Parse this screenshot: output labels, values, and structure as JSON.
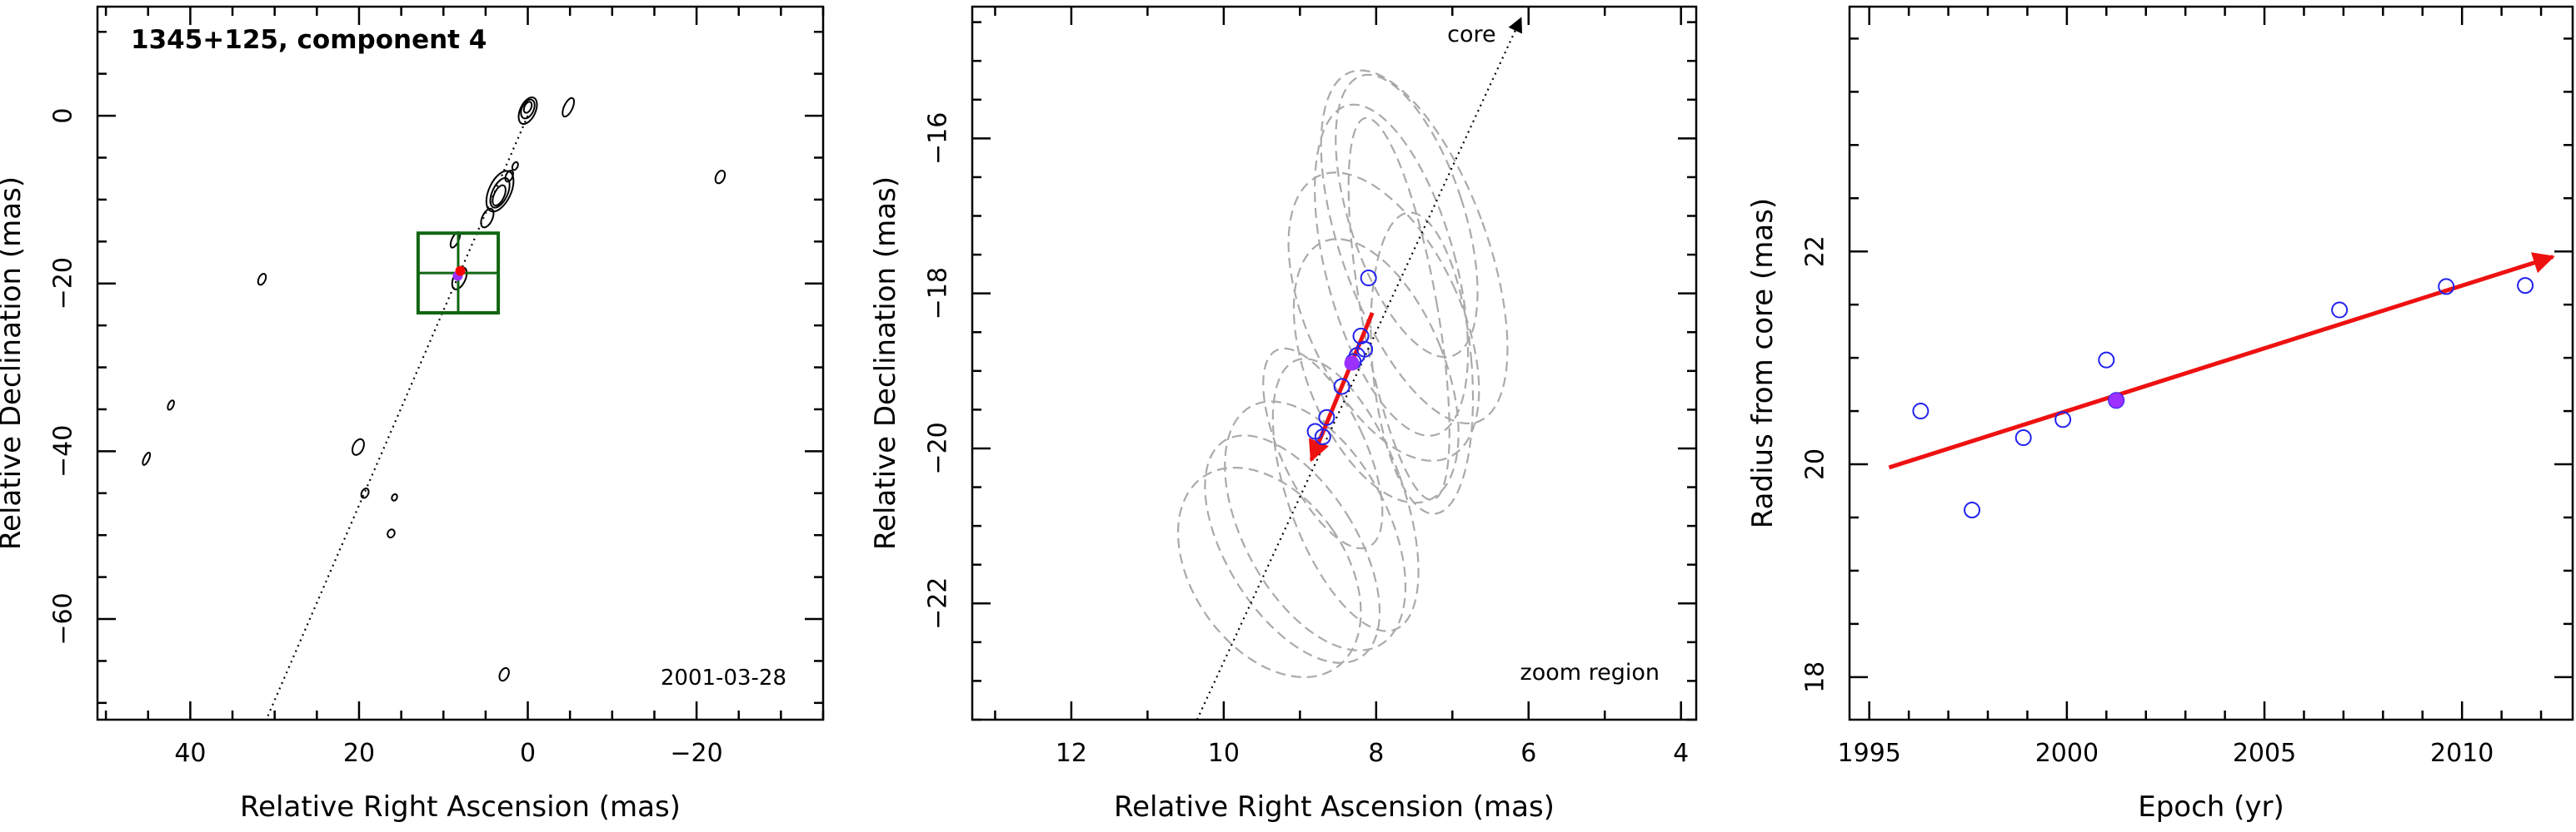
{
  "chart_data": [
    {
      "type": "contour",
      "title": "1345+125, component 4",
      "annotation": "2001-03-28",
      "xlabel": "Relative Right Ascension (mas)",
      "ylabel": "Relative Declination (mas)",
      "xlim": [
        51,
        -35
      ],
      "ylim": [
        -72,
        13
      ],
      "xticks": [
        40,
        20,
        0,
        -20
      ],
      "yticks": [
        0,
        -20,
        -40,
        -60
      ],
      "x_reversed": true,
      "core_line": {
        "from": [
          0,
          0
        ],
        "to": [
          31,
          -72
        ]
      },
      "components": [
        {
          "x": 8.3,
          "y": -19.1,
          "color": "#9b30ff"
        },
        {
          "x": 8.0,
          "y": -18.5,
          "color": "#ff0000"
        }
      ],
      "zoom_box": {
        "x_range": [
          13,
          3.5
        ],
        "y_range": [
          -14,
          -23.5
        ],
        "color": "#116611"
      },
      "contours": [
        {
          "x": 0,
          "y": 0.6,
          "rx": 0.9,
          "ry": 1.7
        },
        {
          "x": 0,
          "y": 0.8,
          "rx": 0.7,
          "ry": 1.2
        },
        {
          "x": 0,
          "y": 1,
          "rx": 0.4,
          "ry": 0.7
        },
        {
          "x": -4.8,
          "y": 1,
          "rx": 0.5,
          "ry": 1.2
        },
        {
          "x": 3.3,
          "y": -9,
          "rx": 1.3,
          "ry": 2.6
        },
        {
          "x": 3.3,
          "y": -9.2,
          "rx": 0.9,
          "ry": 1.9
        },
        {
          "x": 3.4,
          "y": -9.5,
          "rx": 0.6,
          "ry": 1.3
        },
        {
          "x": 2.2,
          "y": -7.2,
          "rx": 0.4,
          "ry": 0.7
        },
        {
          "x": 1.5,
          "y": -6,
          "rx": 0.3,
          "ry": 0.5
        },
        {
          "x": 4.8,
          "y": -12.2,
          "rx": 0.6,
          "ry": 1.2
        },
        {
          "x": 8.1,
          "y": -19.4,
          "rx": 0.7,
          "ry": 1.4
        },
        {
          "x": 8.6,
          "y": -14.8,
          "rx": 0.4,
          "ry": 1.0
        },
        {
          "x": 31.5,
          "y": -19.5,
          "rx": 0.4,
          "ry": 0.7
        },
        {
          "x": 42.3,
          "y": -34.5,
          "rx": 0.3,
          "ry": 0.6
        },
        {
          "x": 45.2,
          "y": -40.9,
          "rx": 0.3,
          "ry": 0.8
        },
        {
          "x": 20.1,
          "y": -39.5,
          "rx": 0.6,
          "ry": 1.0
        },
        {
          "x": 19.3,
          "y": -45,
          "rx": 0.4,
          "ry": 0.6
        },
        {
          "x": 15.8,
          "y": -45.5,
          "rx": 0.3,
          "ry": 0.4
        },
        {
          "x": 16.2,
          "y": -49.8,
          "rx": 0.4,
          "ry": 0.5
        },
        {
          "x": 2.8,
          "y": -66.6,
          "rx": 0.5,
          "ry": 0.8
        },
        {
          "x": -22.8,
          "y": -7.3,
          "rx": 0.5,
          "ry": 0.8
        }
      ]
    },
    {
      "type": "scatter",
      "title": "",
      "annotation": "zoom region",
      "core_label": "core",
      "xlabel": "Relative Right Ascension (mas)",
      "ylabel": "Relative Declination (mas)",
      "xlim": [
        13.3,
        3.8
      ],
      "ylim": [
        -23.5,
        -14.3
      ],
      "xticks": [
        12,
        10,
        8,
        6,
        4
      ],
      "yticks": [
        -16,
        -18,
        -20,
        -22
      ],
      "x_reversed": true,
      "core_line": {
        "from": [
          10.35,
          -23.5
        ],
        "to": [
          6.1,
          -14.45
        ]
      },
      "points": [
        {
          "x": 8.1,
          "y": -17.8
        },
        {
          "x": 8.2,
          "y": -18.55
        },
        {
          "x": 8.15,
          "y": -18.72
        },
        {
          "x": 8.25,
          "y": -18.8
        },
        {
          "x": 8.3,
          "y": -18.88
        },
        {
          "x": 8.45,
          "y": -19.2
        },
        {
          "x": 8.65,
          "y": -19.6
        },
        {
          "x": 8.8,
          "y": -19.78
        },
        {
          "x": 8.7,
          "y": -19.85
        }
      ],
      "highlight_point": {
        "x": 8.32,
        "y": -18.9
      },
      "motion_arrow": {
        "from": [
          8.05,
          -18.25
        ],
        "to": [
          8.85,
          -20.15
        ]
      },
      "beam_ellipses": [
        {
          "x": 7.6,
          "y": -17.0,
          "rx": 0.75,
          "ry": 1.9,
          "angle": -18
        },
        {
          "x": 7.8,
          "y": -17.7,
          "rx": 0.85,
          "ry": 2.2,
          "angle": -15
        },
        {
          "x": 7.5,
          "y": -17.4,
          "rx": 0.95,
          "ry": 2.4,
          "angle": -20
        },
        {
          "x": 7.9,
          "y": -18.3,
          "rx": 1.0,
          "ry": 2.0,
          "angle": -25
        },
        {
          "x": 7.4,
          "y": -18.9,
          "rx": 0.65,
          "ry": 1.95,
          "angle": -5
        },
        {
          "x": 7.7,
          "y": -18.2,
          "rx": 0.5,
          "ry": 2.5,
          "angle": -10
        },
        {
          "x": 8.0,
          "y": -19.0,
          "rx": 0.9,
          "ry": 1.8,
          "angle": -22
        },
        {
          "x": 8.8,
          "y": -21.0,
          "rx": 0.95,
          "ry": 1.75,
          "angle": -28
        },
        {
          "x": 9.1,
          "y": -21.3,
          "rx": 0.85,
          "ry": 1.65,
          "angle": -32
        },
        {
          "x": 8.4,
          "y": -20.6,
          "rx": 0.75,
          "ry": 1.85,
          "angle": -20
        },
        {
          "x": 8.7,
          "y": -20.0,
          "rx": 0.55,
          "ry": 1.4,
          "angle": -25
        },
        {
          "x": 9.4,
          "y": -21.6,
          "rx": 1.0,
          "ry": 1.5,
          "angle": -35
        }
      ]
    },
    {
      "type": "scatter",
      "title": "",
      "xlabel": "Epoch (yr)",
      "ylabel": "Radius from core (mas)",
      "xlim": [
        1994.5,
        2012.8
      ],
      "ylim": [
        17.6,
        24.3
      ],
      "xticks": [
        1995,
        2000,
        2005,
        2010
      ],
      "yticks": [
        18,
        20,
        22
      ],
      "points": [
        {
          "x": 1996.3,
          "y": 20.5
        },
        {
          "x": 1997.6,
          "y": 19.57
        },
        {
          "x": 1998.9,
          "y": 20.25
        },
        {
          "x": 1999.9,
          "y": 20.42
        },
        {
          "x": 2001.0,
          "y": 20.98
        },
        {
          "x": 2001.25,
          "y": 20.6
        },
        {
          "x": 2006.9,
          "y": 21.45
        },
        {
          "x": 2009.6,
          "y": 21.67
        },
        {
          "x": 2011.6,
          "y": 21.68
        }
      ],
      "highlight_point": {
        "x": 2001.25,
        "y": 20.6
      },
      "fit_arrow": {
        "from": [
          1995.5,
          19.97
        ],
        "to": [
          2012.3,
          21.95
        ]
      }
    }
  ]
}
